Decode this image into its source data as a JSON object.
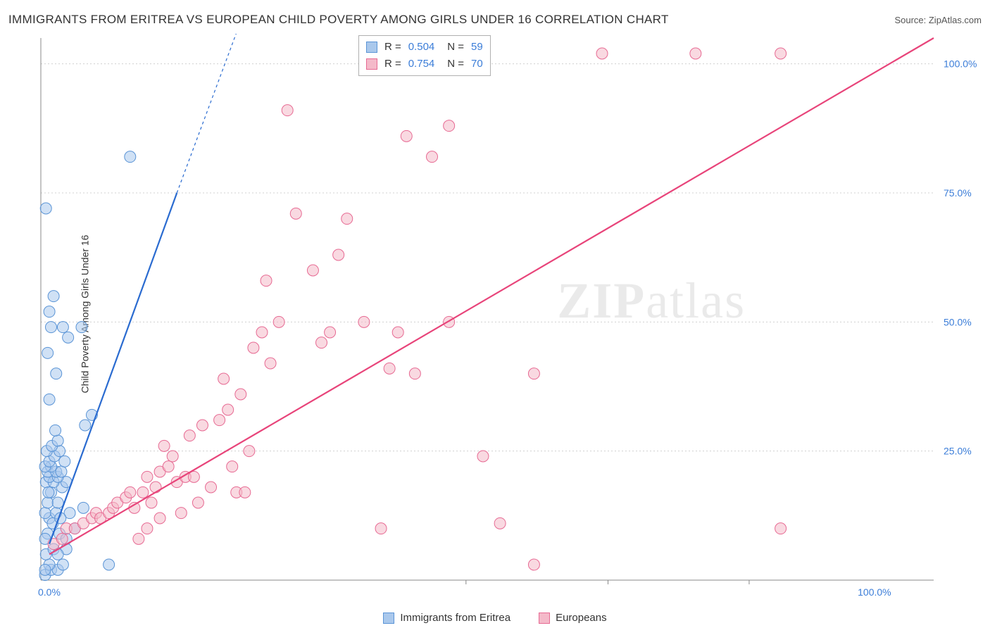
{
  "title": "IMMIGRANTS FROM ERITREA VS EUROPEAN CHILD POVERTY AMONG GIRLS UNDER 16 CORRELATION CHART",
  "source_prefix": "Source: ",
  "source_name": "ZipAtlas.com",
  "ylabel": "Child Poverty Among Girls Under 16",
  "watermark_a": "ZIP",
  "watermark_b": "atlas",
  "chart": {
    "type": "scatter",
    "background_color": "#ffffff",
    "grid_color": "#d0d0d0",
    "axis_color": "#888888",
    "tick_color": "#3b7dd8",
    "xlim": [
      0,
      105
    ],
    "ylim": [
      0,
      105
    ],
    "y_ticks": [
      25,
      50,
      75,
      100
    ],
    "y_tick_labels": [
      "25.0%",
      "50.0%",
      "75.0%",
      "100.0%"
    ],
    "x_ticks": [
      0,
      100
    ],
    "x_tick_labels": [
      "0.0%",
      "100.0%"
    ],
    "x_minor": [
      50,
      66.7,
      83.3
    ],
    "marker_radius": 8,
    "marker_opacity": 0.55,
    "line_width": 2.2,
    "series": [
      {
        "key": "eritrea",
        "label": "Immigrants from Eritrea",
        "fill": "#a9c8ec",
        "stroke": "#5a94d6",
        "line_color": "#2a6bd0",
        "R": "0.504",
        "N": "59",
        "trend": {
          "x1": 1,
          "y1": 7,
          "x2": 16,
          "y2": 75,
          "dash_x2": 23,
          "dash_y2": 106
        },
        "points": [
          [
            0.5,
            1
          ],
          [
            1.2,
            2
          ],
          [
            2.0,
            2
          ],
          [
            1.0,
            3
          ],
          [
            2.6,
            3
          ],
          [
            0.6,
            5
          ],
          [
            1.5,
            6
          ],
          [
            3.0,
            6
          ],
          [
            0.8,
            9
          ],
          [
            2.2,
            9
          ],
          [
            4.0,
            10
          ],
          [
            1.0,
            12
          ],
          [
            0.5,
            13
          ],
          [
            1.8,
            13
          ],
          [
            3.4,
            13
          ],
          [
            0.8,
            15
          ],
          [
            2.0,
            15
          ],
          [
            1.2,
            17
          ],
          [
            2.5,
            18
          ],
          [
            0.6,
            19
          ],
          [
            1.5,
            19
          ],
          [
            3.0,
            19
          ],
          [
            1.0,
            20
          ],
          [
            2.0,
            20
          ],
          [
            0.8,
            21
          ],
          [
            1.8,
            21
          ],
          [
            2.4,
            21
          ],
          [
            1.2,
            22
          ],
          [
            0.5,
            22
          ],
          [
            2.8,
            23
          ],
          [
            1.0,
            23
          ],
          [
            1.6,
            24
          ],
          [
            0.7,
            25
          ],
          [
            2.2,
            25
          ],
          [
            1.3,
            26
          ],
          [
            2.0,
            27
          ],
          [
            5.2,
            30
          ],
          [
            6.0,
            32
          ],
          [
            1.0,
            35
          ],
          [
            1.8,
            40
          ],
          [
            0.8,
            44
          ],
          [
            3.2,
            47
          ],
          [
            4.8,
            49
          ],
          [
            1.2,
            49
          ],
          [
            2.6,
            49
          ],
          [
            1.0,
            52
          ],
          [
            1.5,
            55
          ],
          [
            0.6,
            72
          ],
          [
            10.5,
            82
          ],
          [
            8.0,
            3
          ],
          [
            5.0,
            14
          ],
          [
            3.0,
            8
          ],
          [
            0.5,
            8
          ],
          [
            2.0,
            5
          ],
          [
            1.4,
            11
          ],
          [
            0.9,
            17
          ],
          [
            2.3,
            12
          ],
          [
            1.7,
            29
          ],
          [
            0.5,
            2
          ]
        ]
      },
      {
        "key": "europeans",
        "label": "Europeans",
        "fill": "#f4b9c9",
        "stroke": "#e76a93",
        "line_color": "#e8447a",
        "R": "0.754",
        "N": "70",
        "trend": {
          "x1": 1,
          "y1": 5,
          "x2": 105,
          "y2": 105
        },
        "points": [
          [
            1.5,
            7
          ],
          [
            2.5,
            8
          ],
          [
            3.0,
            10
          ],
          [
            4.0,
            10
          ],
          [
            5.0,
            11
          ],
          [
            6.0,
            12
          ],
          [
            6.5,
            13
          ],
          [
            7.0,
            12
          ],
          [
            8.0,
            13
          ],
          [
            8.5,
            14
          ],
          [
            9.0,
            15
          ],
          [
            10.0,
            16
          ],
          [
            10.5,
            17
          ],
          [
            11.0,
            14
          ],
          [
            12.0,
            17
          ],
          [
            13.0,
            15
          ],
          [
            12.5,
            20
          ],
          [
            13.5,
            18
          ],
          [
            14.0,
            21
          ],
          [
            15.0,
            22
          ],
          [
            16.0,
            19
          ],
          [
            17.0,
            20
          ],
          [
            18.0,
            20
          ],
          [
            15.5,
            24
          ],
          [
            14.5,
            26
          ],
          [
            17.5,
            28
          ],
          [
            20.0,
            18
          ],
          [
            19.0,
            30
          ],
          [
            21.0,
            31
          ],
          [
            22.0,
            33
          ],
          [
            23.0,
            17
          ],
          [
            24.0,
            17
          ],
          [
            21.5,
            39
          ],
          [
            23.5,
            36
          ],
          [
            25.0,
            45
          ],
          [
            26.0,
            48
          ],
          [
            27.0,
            42
          ],
          [
            28.0,
            50
          ],
          [
            26.5,
            58
          ],
          [
            30.0,
            71
          ],
          [
            32.0,
            60
          ],
          [
            33.0,
            46
          ],
          [
            34.0,
            48
          ],
          [
            35.0,
            63
          ],
          [
            36.0,
            70
          ],
          [
            38.0,
            50
          ],
          [
            40.0,
            10
          ],
          [
            41.0,
            41
          ],
          [
            42.0,
            48
          ],
          [
            43.0,
            86
          ],
          [
            44.0,
            40
          ],
          [
            46.0,
            82
          ],
          [
            48.0,
            88
          ],
          [
            48.0,
            50
          ],
          [
            52.0,
            24
          ],
          [
            54.0,
            11
          ],
          [
            58.0,
            40
          ],
          [
            58.0,
            3
          ],
          [
            66.0,
            102
          ],
          [
            77.0,
            102
          ],
          [
            87.0,
            102
          ],
          [
            87.0,
            10
          ],
          [
            11.5,
            8
          ],
          [
            12.5,
            10
          ],
          [
            14.0,
            12
          ],
          [
            16.5,
            13
          ],
          [
            18.5,
            15
          ],
          [
            22.5,
            22
          ],
          [
            24.5,
            25
          ],
          [
            29.0,
            91
          ]
        ]
      }
    ]
  },
  "legend_stats_label_R": "R =",
  "legend_stats_label_N": "N ="
}
